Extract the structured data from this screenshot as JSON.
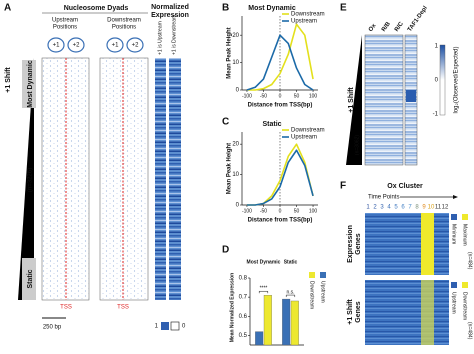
{
  "panels": {
    "A": {
      "letter": "A",
      "title": "Nucleosome Dyads",
      "expression_title": [
        "Normalized",
        "Expression"
      ],
      "upstream": [
        "Upstream",
        "Positions"
      ],
      "downstream": [
        "Downstream",
        "Positions"
      ],
      "nucleosomes": [
        "+1",
        "+2"
      ],
      "columns": [
        "+1 is Upstream",
        "+1 is Downstream"
      ],
      "shift": "+1 Shift",
      "groups": [
        "Most Dynamic",
        "Static"
      ],
      "n": "(n=3226)",
      "tss": "TSS",
      "scale": "250 bp",
      "legend": [
        1,
        0
      ]
    },
    "E": {
      "letter": "E",
      "columns": [
        "Ox",
        "R/B",
        "R/C",
        "TAF1-Depl"
      ],
      "shift": "+1 Shift",
      "n": "(n=3062)",
      "colorbar_label": "log₂(Observed/Expected)",
      "colorbar_ticks": [
        1,
        0,
        -1
      ]
    },
    "F": {
      "letter": "F",
      "title": "Ox Cluster",
      "time_label": "Time Points",
      "time_points": [
        1,
        2,
        3,
        4,
        5,
        6,
        7,
        8,
        9,
        10,
        11,
        12
      ],
      "rows": [
        [
          "Expression",
          "Genes"
        ],
        [
          "+1 Shift",
          "Genes"
        ]
      ],
      "legend_top": [
        "Maximum",
        "Minimum",
        "(n=484)"
      ],
      "legend_bottom": [
        "Downstream",
        "Upstream",
        "(n=484)"
      ]
    },
    "letters": [
      "B",
      "C",
      "D"
    ]
  },
  "chart_data": [
    {
      "type": "line",
      "title": "Most Dynamic",
      "xlabel": "Distance from TSS(bp)",
      "ylabel": "Mean Peak Height",
      "x": [
        -100,
        -75,
        -50,
        -25,
        0,
        25,
        50,
        75,
        100
      ],
      "series": [
        {
          "name": "Downstream",
          "color": "#e3e01c",
          "values": [
            0,
            0,
            0.5,
            2,
            6,
            13,
            24,
            20,
            4
          ]
        },
        {
          "name": "Upstream",
          "color": "#1c6aa8",
          "values": [
            0,
            1,
            4,
            12,
            20,
            17,
            8,
            2,
            0
          ]
        }
      ],
      "xlim": [
        -115,
        115
      ],
      "ylim": [
        0,
        27
      ],
      "xticks": [
        -100,
        -50,
        0,
        50,
        100
      ],
      "yticks": [
        0,
        10,
        20
      ],
      "vline": 0
    },
    {
      "type": "line",
      "title": "Static",
      "xlabel": "Distance from TSS(bp)",
      "ylabel": "Mean Peak Height",
      "x": [
        -100,
        -75,
        -50,
        -25,
        0,
        25,
        50,
        75,
        100
      ],
      "series": [
        {
          "name": "Downstream",
          "color": "#e3e01c",
          "values": [
            0,
            0,
            0.5,
            3,
            8,
            16,
            20,
            14,
            3
          ]
        },
        {
          "name": "Upstream",
          "color": "#1c6aa8",
          "values": [
            0,
            0,
            0.5,
            2,
            6,
            14,
            18,
            13,
            3
          ]
        }
      ],
      "xlim": [
        -115,
        115
      ],
      "ylim": [
        0,
        24
      ],
      "xticks": [
        -100,
        -50,
        0,
        50,
        100
      ],
      "yticks": [
        0,
        10,
        20
      ],
      "vline": 0
    },
    {
      "type": "bar",
      "ylabel": "Mean Normalized Expression",
      "categories": [
        "Most Dynamic",
        "Static"
      ],
      "series": [
        {
          "name": "Upstream",
          "color": "#3a70b5",
          "values": [
            0.52,
            0.69
          ]
        },
        {
          "name": "Downstream",
          "color": "#ede830",
          "values": [
            0.71,
            0.68
          ]
        }
      ],
      "annotations": [
        "****",
        "n.s."
      ],
      "ylim": [
        0.45,
        0.8
      ],
      "yticks": [
        0.5,
        0.6,
        0.7,
        0.8
      ]
    }
  ]
}
